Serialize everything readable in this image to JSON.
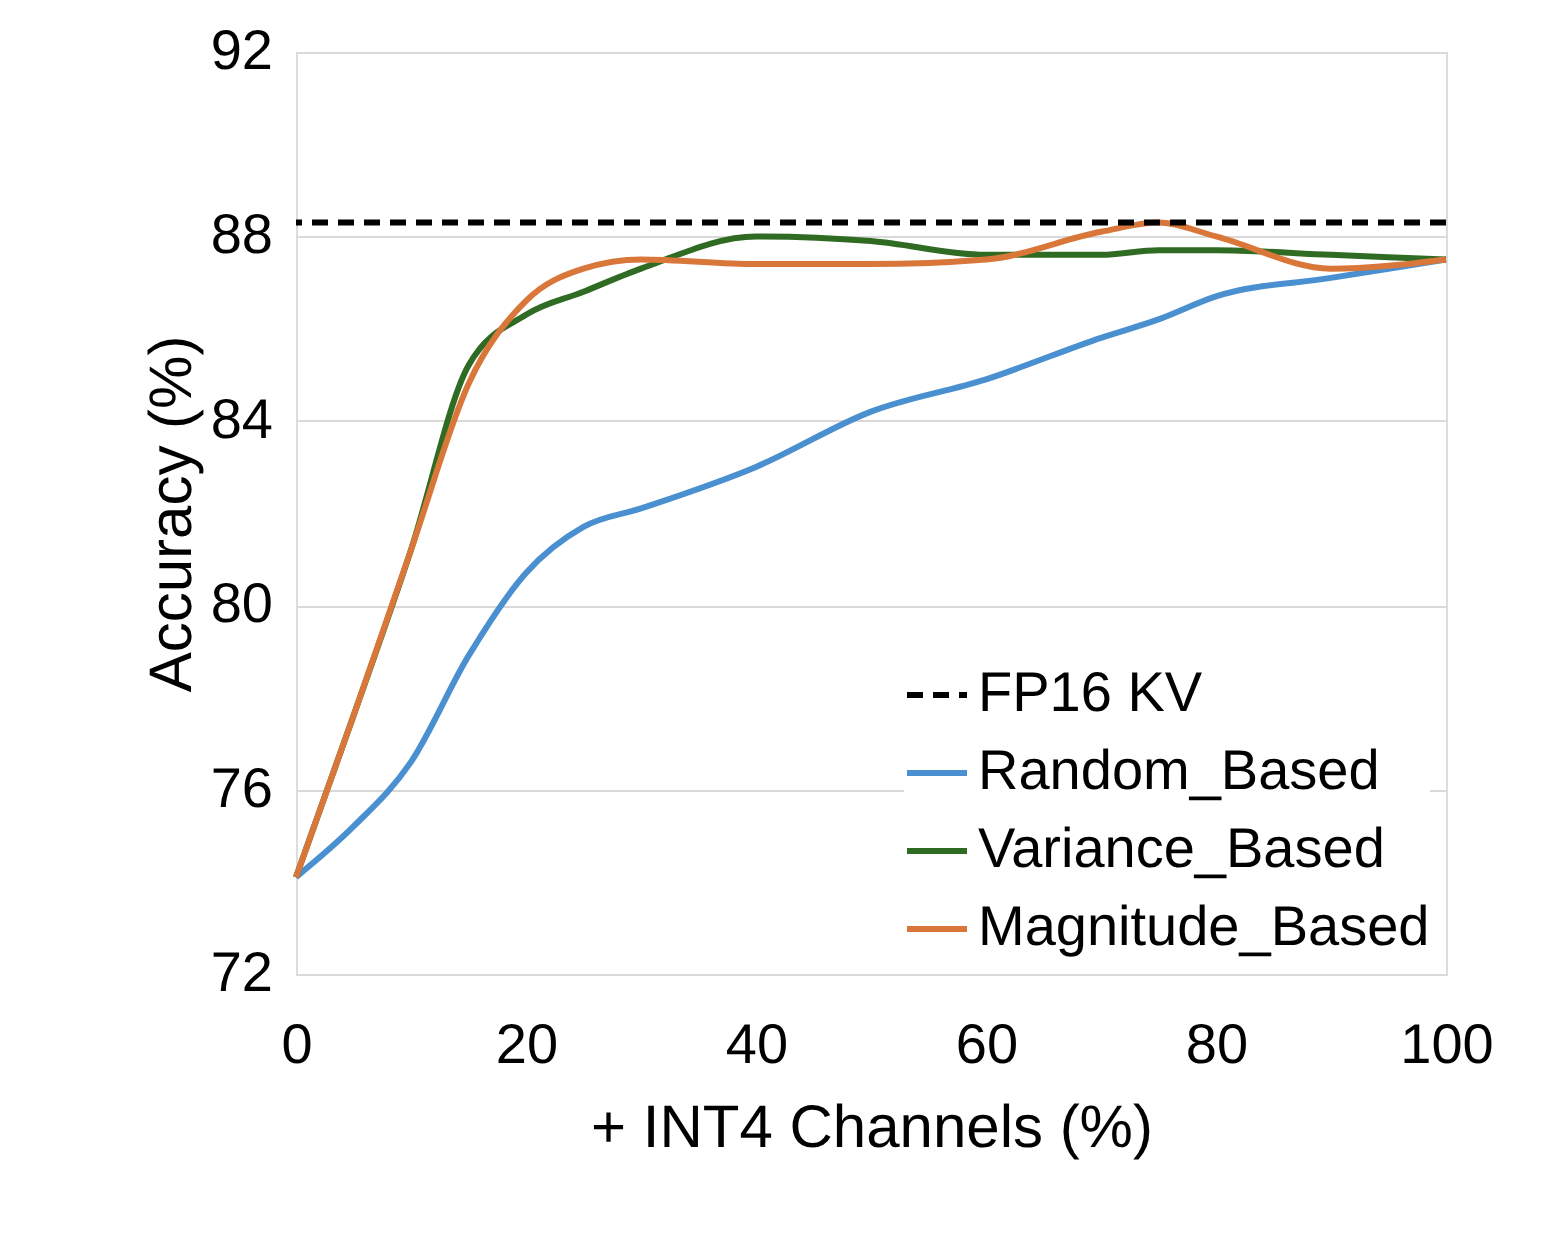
{
  "chart_data": {
    "type": "line",
    "xlabel": "+ INT4 Channels (%)",
    "ylabel": "Accuracy (%)",
    "x": [
      0,
      5,
      10,
      15,
      20,
      25,
      30,
      40,
      50,
      60,
      70,
      75,
      80,
      90,
      100
    ],
    "series": [
      {
        "name": "Random_Based",
        "color": "#4a90d0",
        "values": [
          74.1,
          75.2,
          76.6,
          78.9,
          80.7,
          81.7,
          82.1,
          83.0,
          84.2,
          84.9,
          85.8,
          86.2,
          86.7,
          87.1,
          87.5
        ]
      },
      {
        "name": "Variance_Based",
        "color": "#2f6b22",
        "values": [
          74.1,
          77.6,
          81.2,
          85.2,
          86.3,
          86.8,
          87.3,
          88.0,
          87.9,
          87.6,
          87.6,
          87.7,
          87.7,
          87.6,
          87.5
        ]
      },
      {
        "name": "Magnitude_Based",
        "color": "#d9773a",
        "values": [
          74.1,
          77.6,
          81.2,
          84.8,
          86.6,
          87.3,
          87.5,
          87.4,
          87.4,
          87.5,
          88.1,
          88.3,
          88.0,
          87.3,
          87.5
        ]
      }
    ],
    "ref_lines": [
      {
        "axis": "y",
        "value": 88.3,
        "label": "FP16 KV",
        "color": "#000000",
        "line_style": "dashed"
      }
    ],
    "xlim": [
      0,
      100
    ],
    "xticks": [
      0,
      20,
      40,
      60,
      80,
      100
    ],
    "ylim": [
      72,
      92
    ],
    "yticks": [
      72,
      76,
      80,
      84,
      88,
      92
    ],
    "grid": "y",
    "legend": "bottom right",
    "line_style": "solid",
    "marker": "none"
  }
}
